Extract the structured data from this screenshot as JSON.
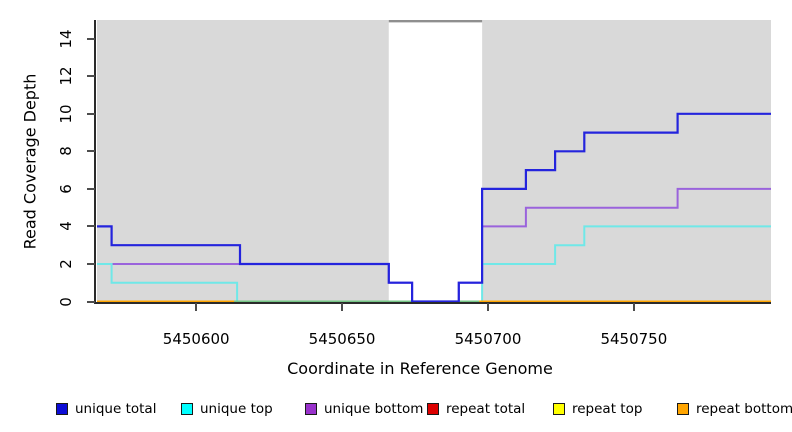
{
  "chart_data": {
    "type": "line",
    "step_mode": "after",
    "title": "",
    "xlabel": "Coordinate in Reference Genome",
    "ylabel": "Read Coverage Depth",
    "xlim": [
      5450566,
      5450797
    ],
    "ylim": [
      0,
      15
    ],
    "x_ticks": [
      5450600,
      5450650,
      5450700,
      5450750
    ],
    "y_ticks": [
      0,
      2,
      4,
      6,
      8,
      10,
      12,
      14
    ],
    "panel_background": "#d9d9d9",
    "grid": false,
    "legend_position": "bottom",
    "series": [
      {
        "name": "unique total",
        "color": "#0d0dd6",
        "line_color": "#2424dd",
        "points": [
          [
            5450566,
            4
          ],
          [
            5450571,
            3
          ],
          [
            5450615,
            2
          ],
          [
            5450666,
            1
          ],
          [
            5450674,
            0
          ],
          [
            5450690,
            1
          ],
          [
            5450698,
            6
          ],
          [
            5450713,
            7
          ],
          [
            5450723,
            8
          ],
          [
            5450733,
            9
          ],
          [
            5450765,
            10
          ],
          [
            5450797,
            10
          ]
        ]
      },
      {
        "name": "unique top",
        "color": "#00ffff",
        "line_color": "#6fe8e8",
        "points": [
          [
            5450566,
            2
          ],
          [
            5450571,
            1
          ],
          [
            5450614,
            0
          ],
          [
            5450698,
            2
          ],
          [
            5450723,
            3
          ],
          [
            5450733,
            4
          ],
          [
            5450797,
            4
          ]
        ]
      },
      {
        "name": "unique bottom",
        "color": "#9932cc",
        "line_color": "#9a63dc",
        "points": [
          [
            5450566,
            2
          ],
          [
            5450666,
            1
          ],
          [
            5450674,
            0
          ],
          [
            5450690,
            1
          ],
          [
            5450698,
            4
          ],
          [
            5450713,
            5
          ],
          [
            5450765,
            6
          ],
          [
            5450797,
            6
          ]
        ]
      },
      {
        "name": "repeat total",
        "color": "#dd0000",
        "line_color": "#dd0000",
        "points": [
          [
            5450566,
            0
          ],
          [
            5450797,
            0
          ]
        ]
      },
      {
        "name": "repeat top",
        "color": "#ffff00",
        "line_color": "#ffff00",
        "points": [
          [
            5450566,
            0
          ],
          [
            5450797,
            0
          ]
        ]
      },
      {
        "name": "repeat bottom",
        "color": "#ffa500",
        "line_color": "#ffa500",
        "points": [
          [
            5450566,
            0
          ],
          [
            5450797,
            0
          ]
        ]
      }
    ],
    "overlap_segment": {
      "color": "#74c584",
      "depth": 0,
      "x_start": 5450613,
      "x_end": 5450697
    },
    "masked_region": {
      "x_start": 5450666,
      "x_end": 5450698,
      "fill": "#ffffff",
      "top_edge_color": "#8f8f8f",
      "top_edge_depth": 15
    }
  }
}
